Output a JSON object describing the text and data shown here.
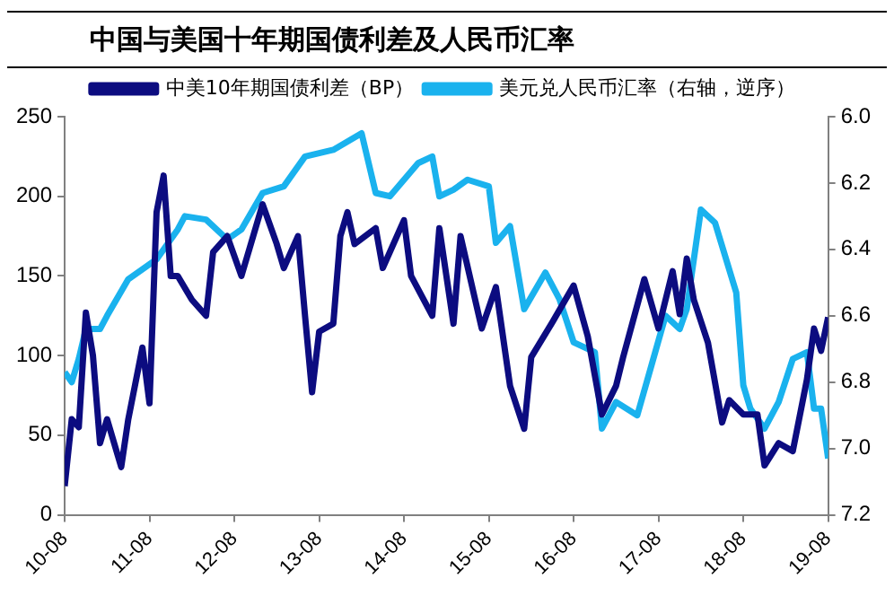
{
  "chart_data": {
    "type": "line",
    "title": "中国与美国十年期国债利差及人民币汇率",
    "categories": [
      "10-08",
      null,
      null,
      null,
      null,
      null,
      null,
      null,
      null,
      null,
      null,
      null,
      "11-08",
      null,
      null,
      null,
      null,
      null,
      null,
      null,
      null,
      null,
      null,
      null,
      "12-08",
      null,
      null,
      null,
      null,
      null,
      null,
      null,
      null,
      null,
      null,
      null,
      "13-08",
      null,
      null,
      null,
      null,
      null,
      null,
      null,
      null,
      null,
      null,
      null,
      "14-08",
      null,
      null,
      null,
      null,
      null,
      null,
      null,
      null,
      null,
      null,
      null,
      "15-08",
      null,
      null,
      null,
      null,
      null,
      null,
      null,
      null,
      null,
      null,
      null,
      "16-08",
      null,
      null,
      null,
      null,
      null,
      null,
      null,
      null,
      null,
      null,
      null,
      "17-08",
      null,
      null,
      null,
      null,
      null,
      null,
      null,
      null,
      null,
      null,
      null,
      "18-08",
      null,
      null,
      null,
      null,
      null,
      null,
      null,
      null,
      null,
      null,
      null,
      "19-08"
    ],
    "ylim": [
      0,
      250
    ],
    "yticks": [
      0,
      50,
      100,
      150,
      200,
      250
    ],
    "y2lim": [
      7.2,
      6.0
    ],
    "y2ticks": [
      {
        "value": 6.0,
        "label": "6.0"
      },
      {
        "value": 6.2,
        "label": "6.2"
      },
      {
        "value": 6.4,
        "label": "6.4"
      },
      {
        "value": 6.6,
        "label": "6.6"
      },
      {
        "value": 6.8,
        "label": "6.8"
      },
      {
        "value": 7.0,
        "label": "7.0"
      },
      {
        "value": 7.2,
        "label": "7.2"
      }
    ],
    "grid": false,
    "legend": "top",
    "marker": "none",
    "line_style": "solid",
    "series": [
      {
        "name": "中美10年期国债利差（BP）",
        "color": "#0c0c80",
        "values": [
          18,
          60,
          55,
          127,
          100,
          45,
          60,
          45,
          30,
          60,
          null,
          105,
          70,
          190,
          213,
          150,
          150,
          null,
          135,
          null,
          125,
          165,
          null,
          175,
          null,
          150,
          null,
          180,
          195,
          null,
          170,
          155,
          null,
          175,
          125,
          77,
          115,
          null,
          120,
          175,
          190,
          170,
          null,
          null,
          180,
          155,
          null,
          null,
          185,
          150,
          null,
          null,
          125,
          180,
          null,
          120,
          175,
          null,
          null,
          117,
          null,
          143,
          null,
          81,
          null,
          54,
          99,
          null,
          null,
          121,
          null,
          null,
          144,
          null,
          112,
          null,
          63,
          null,
          81,
          99,
          null,
          null,
          148,
          null,
          117,
          null,
          153,
          126,
          161,
          135,
          null,
          108,
          null,
          58,
          72,
          null,
          63,
          null,
          63,
          31,
          null,
          45,
          null,
          40,
          null,
          85,
          117,
          103,
          124
        ]
      },
      {
        "name": "美元兑人民币汇率（右轴，逆序）",
        "color": "#1ab2ee",
        "axis": "y2",
        "values": [
          6.77,
          6.8,
          6.73,
          6.64,
          null,
          6.64,
          6.6,
          null,
          null,
          6.49,
          null,
          null,
          null,
          6.43,
          null,
          null,
          6.34,
          6.3,
          null,
          null,
          6.31,
          null,
          null,
          6.37,
          null,
          6.34,
          null,
          null,
          6.23,
          null,
          null,
          6.21,
          null,
          null,
          6.12,
          null,
          null,
          null,
          6.1,
          null,
          null,
          null,
          6.05,
          null,
          6.23,
          null,
          6.24,
          null,
          null,
          null,
          6.14,
          null,
          6.12,
          6.24,
          null,
          6.22,
          null,
          6.19,
          null,
          null,
          6.21,
          6.38,
          null,
          6.33,
          null,
          6.58,
          null,
          null,
          6.47,
          null,
          6.55,
          null,
          6.68,
          null,
          null,
          6.71,
          6.94,
          null,
          6.86,
          null,
          null,
          6.9,
          null,
          6.75,
          null,
          6.6,
          null,
          6.64,
          6.58,
          null,
          6.28,
          null,
          6.32,
          null,
          null,
          6.53,
          6.81,
          6.88,
          null,
          6.94,
          null,
          6.86,
          null,
          6.73,
          null,
          6.71,
          6.88,
          6.88,
          7.03
        ]
      }
    ]
  }
}
